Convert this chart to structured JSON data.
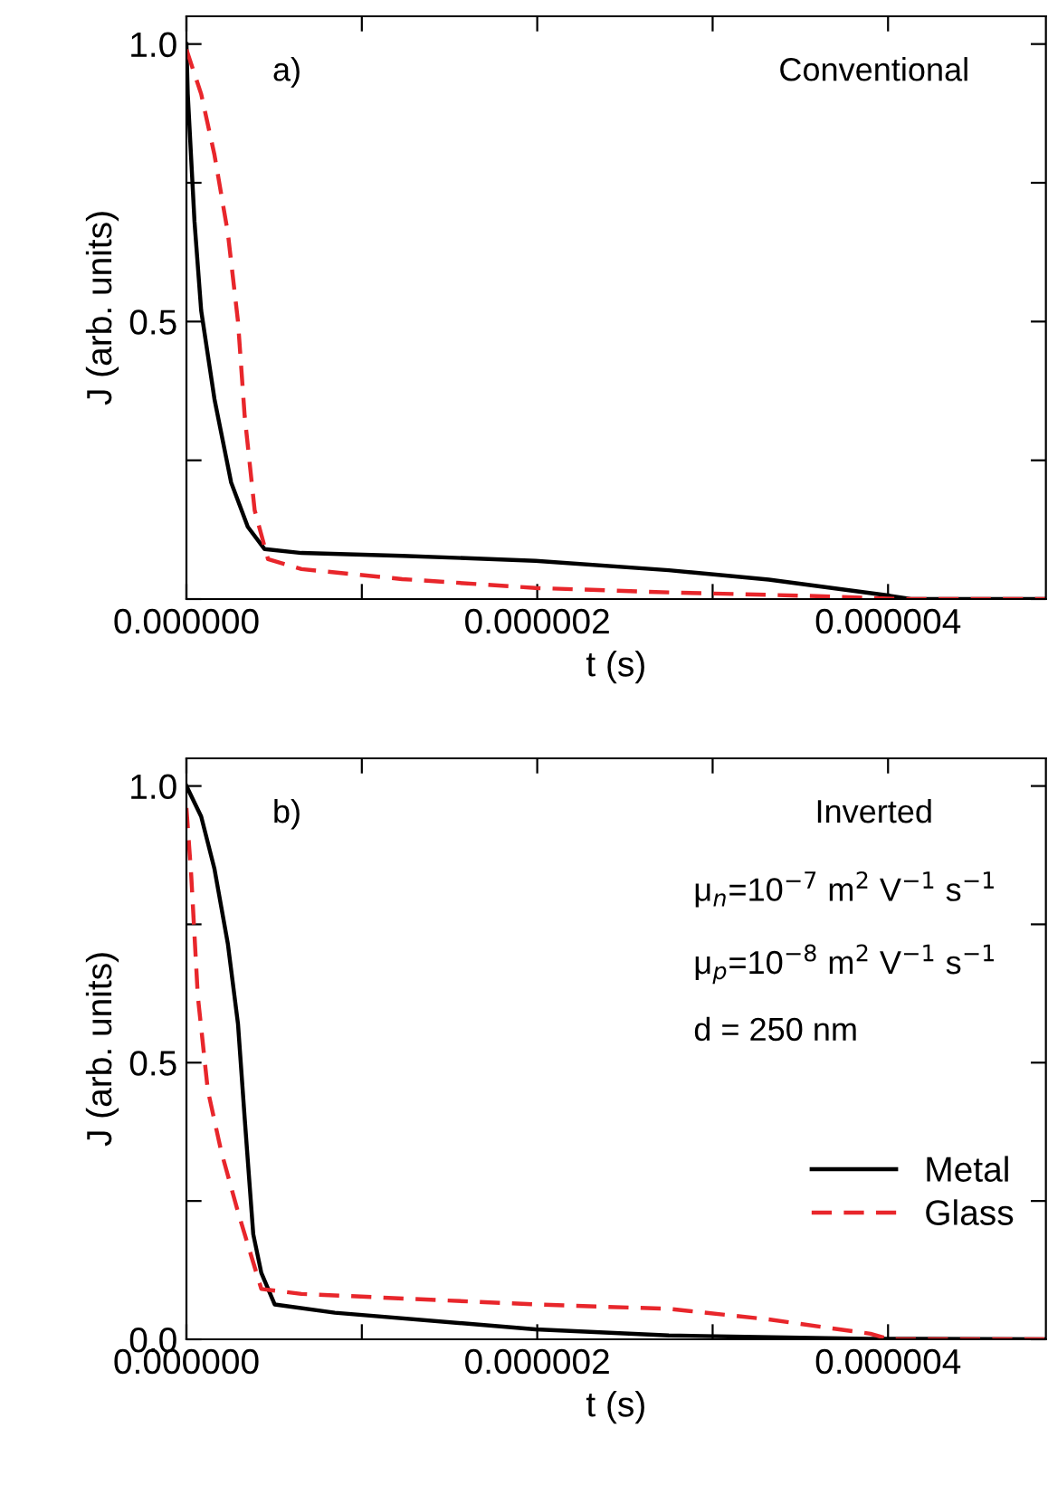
{
  "chart_data": [
    {
      "type": "line",
      "xlabel": "t (s)",
      "ylabel": "J (arb. units)",
      "annotations": [
        "a)",
        "Conventional"
      ],
      "xlim": [
        0,
        4.9e-06
      ],
      "xticks": [
        {
          "value": 0,
          "label": "0.000000"
        },
        {
          "value": 1e-06,
          "label": null
        },
        {
          "value": 2e-06,
          "label": "0.000002"
        },
        {
          "value": 3e-06,
          "label": null
        },
        {
          "value": 4e-06,
          "label": "0.000004"
        }
      ],
      "ylim": [
        0,
        1.05
      ],
      "yticks": [
        {
          "value": 0,
          "label": null
        },
        {
          "value": 0.25,
          "label": null
        },
        0.5,
        {
          "value": 0.75,
          "label": null
        },
        {
          "value": 1,
          "label": "1.0"
        }
      ],
      "grid": false,
      "legend": false,
      "series": [
        {
          "color": "#000000",
          "line_style": "solid",
          "x": [
            0,
            7.6e-09,
            4.6e-08,
            8.4e-08,
            1.6e-07,
            2.55e-07,
            3.5e-07,
            4.46e-07,
            6.56e-07,
            1.23e-06,
            1.99e-06,
            2.75e-06,
            3.32e-06,
            4.01e-06,
            4.13e-06,
            4.9e-06
          ],
          "values": [
            1.0,
            0.91,
            0.68,
            0.52,
            0.36,
            0.21,
            0.13,
            0.09,
            0.083,
            0.078,
            0.069,
            0.052,
            0.035,
            0.006,
            0,
            0
          ]
        },
        {
          "color": "#e8262b",
          "line_style": "dashed",
          "x": [
            0,
            8.4e-08,
            1.6e-07,
            2.36e-07,
            2.94e-07,
            3.32e-07,
            3.89e-07,
            4.65e-07,
            6.56e-07,
            1.23e-06,
            1.99e-06,
            2.75e-06,
            3.52e-06,
            4.09e-06,
            4.9e-06
          ],
          "values": [
            0.99,
            0.91,
            0.8,
            0.66,
            0.5,
            0.33,
            0.16,
            0.072,
            0.054,
            0.036,
            0.02,
            0.012,
            0.006,
            0,
            0
          ]
        }
      ]
    },
    {
      "type": "line",
      "xlabel": "t (s)",
      "ylabel": "J (arb. units)",
      "annotations": [
        "b)",
        "Inverted",
        "μ$_{n}$=10$^{−7}$ m$^{2}$ V$^{−1}$ s$^{−1}$",
        "μ$_{p}$=10$^{−8}$ m$^{2}$ V$^{−1}$ s$^{−1}$",
        "d = 250 nm"
      ],
      "xlim": [
        0,
        4.9e-06
      ],
      "xticks": [
        {
          "value": 0,
          "label": "0.000000"
        },
        {
          "value": 1e-06,
          "label": null
        },
        {
          "value": 2e-06,
          "label": "0.000002"
        },
        {
          "value": 3e-06,
          "label": null
        },
        {
          "value": 4e-06,
          "label": "0.000004"
        }
      ],
      "ylim": [
        0,
        1.05
      ],
      "yticks": [
        {
          "value": 0,
          "label": "0.0"
        },
        {
          "value": 0.25,
          "label": null
        },
        0.5,
        {
          "value": 0.75,
          "label": null
        },
        {
          "value": 1,
          "label": "1.0"
        }
      ],
      "grid": false,
      "legend": "right",
      "series": [
        {
          "name": "Metal",
          "color": "#000000",
          "line_style": "solid",
          "x": [
            0,
            8.4e-08,
            1.6e-07,
            2.36e-07,
            2.94e-07,
            3.32e-07,
            3.81e-07,
            4.27e-07,
            5.03e-07,
            8.46e-07,
            1.99e-06,
            2.75e-06,
            3.89e-06,
            4.9e-06
          ],
          "values": [
            1.0,
            0.945,
            0.85,
            0.715,
            0.57,
            0.4,
            0.19,
            0.12,
            0.063,
            0.048,
            0.018,
            0.007,
            0.001,
            0
          ]
        },
        {
          "name": "Glass",
          "color": "#e8262b",
          "line_style": "dashed",
          "x": [
            0,
            2.7e-08,
            6.5e-08,
            1.22e-07,
            1.98e-07,
            2.94e-07,
            3.51e-07,
            4.27e-07,
            6.56e-07,
            1.99e-06,
            2.75e-06,
            3.32e-06,
            3.9e-06,
            4.01e-06,
            4.9e-06
          ],
          "values": [
            0.96,
            0.84,
            0.62,
            0.45,
            0.34,
            0.23,
            0.17,
            0.091,
            0.082,
            0.063,
            0.055,
            0.036,
            0.01,
            0,
            0
          ]
        }
      ]
    }
  ]
}
